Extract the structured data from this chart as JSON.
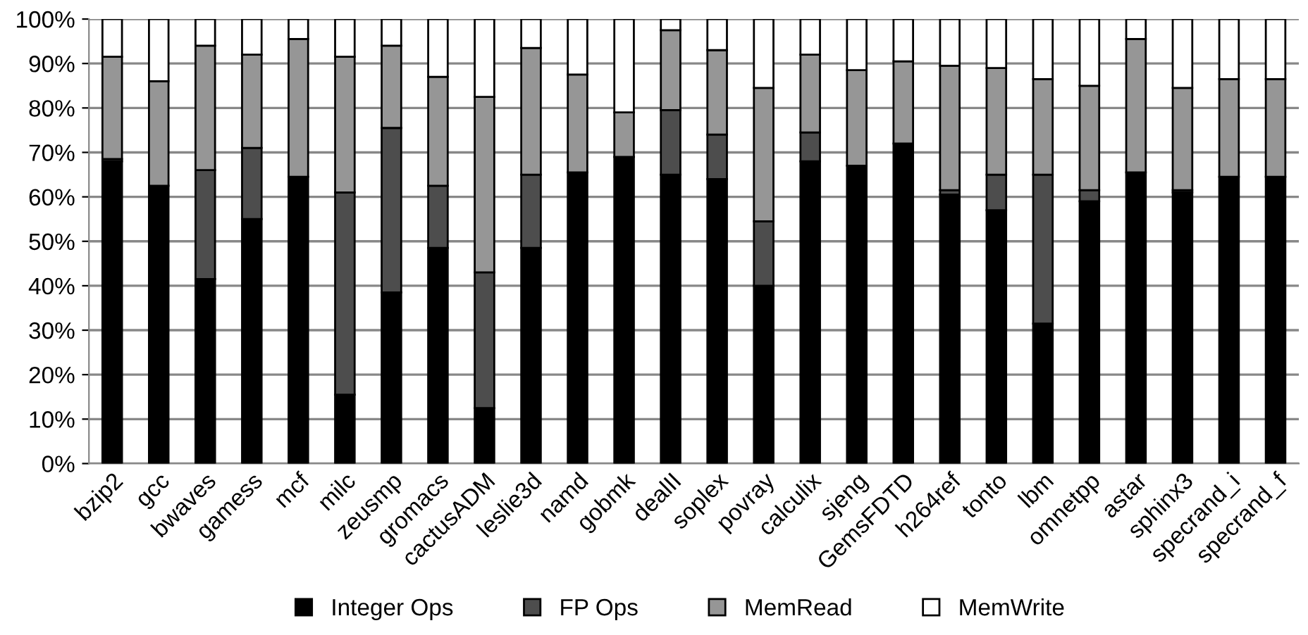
{
  "chart_data": {
    "type": "bar",
    "stacked": true,
    "categories": [
      "bzip2",
      "gcc",
      "bwaves",
      "gamess",
      "mcf",
      "milc",
      "zeusmp",
      "gromacs",
      "cactusADM",
      "leslie3d",
      "namd",
      "gobmk",
      "dealII",
      "soplex",
      "povray",
      "calculix",
      "sjeng",
      "GemsFDTD",
      "h264ref",
      "tonto",
      "lbm",
      "omnetpp",
      "astar",
      "sphinx3",
      "specrand_i",
      "specrand_f"
    ],
    "series": [
      {
        "name": "Integer Ops",
        "color": "#000000",
        "values": [
          68,
          62.5,
          41.5,
          55,
          64.5,
          15.5,
          38.5,
          48.5,
          12.5,
          48.5,
          65.5,
          69,
          65,
          64,
          40,
          68,
          67,
          72,
          60.5,
          57,
          31.5,
          59,
          65.5,
          61,
          64.5,
          64.5
        ]
      },
      {
        "name": "FP Ops",
        "color": "#4d4d4d",
        "values": [
          0.5,
          0,
          24.5,
          16,
          0,
          45.5,
          37,
          14,
          30.5,
          16.5,
          0,
          0,
          14.5,
          10,
          14.5,
          6.5,
          0,
          0,
          1,
          8,
          33.5,
          2.5,
          0,
          0.5,
          0,
          0
        ]
      },
      {
        "name": "MemRead",
        "color": "#969696",
        "values": [
          23,
          23.5,
          28,
          21,
          31,
          30.5,
          18.5,
          24.5,
          39.5,
          28.5,
          22,
          10,
          18,
          19,
          30,
          17.5,
          21.5,
          18.5,
          28,
          24,
          21.5,
          23.5,
          30,
          23,
          22,
          22
        ]
      },
      {
        "name": "MemWrite",
        "color": "#ffffff",
        "values": [
          8.5,
          14,
          6,
          8,
          4.5,
          8.5,
          6,
          13,
          17.5,
          6.5,
          12.5,
          21,
          2.5,
          7,
          15.5,
          8,
          11.5,
          9.5,
          10.5,
          11,
          13.5,
          15,
          4.5,
          15.5,
          13.5,
          13.5
        ]
      }
    ],
    "ylim": [
      0,
      100
    ],
    "yticks": [
      {
        "value": 0,
        "label": "0%"
      },
      {
        "value": 10,
        "label": "10%"
      },
      {
        "value": 20,
        "label": "20%"
      },
      {
        "value": 30,
        "label": "30%"
      },
      {
        "value": 40,
        "label": "40%"
      },
      {
        "value": 50,
        "label": "50%"
      },
      {
        "value": 60,
        "label": "60%"
      },
      {
        "value": 70,
        "label": "70%"
      },
      {
        "value": 80,
        "label": "80%"
      },
      {
        "value": 90,
        "label": "90%"
      },
      {
        "value": 100,
        "label": "100%"
      }
    ],
    "grid": "y",
    "legend": "bottom"
  }
}
